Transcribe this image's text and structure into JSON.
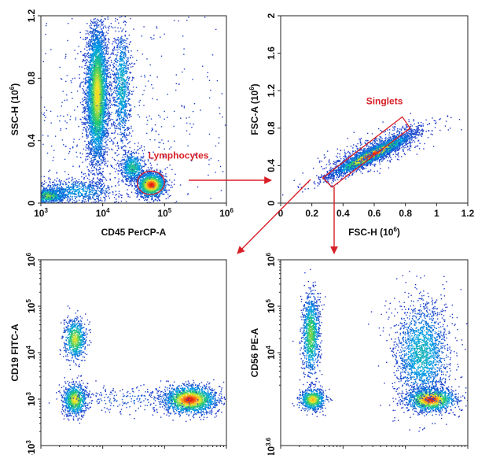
{
  "chart_data": [
    {
      "type": "scatter",
      "plot_style": "flow-cytometry-density-dot-plot",
      "xlabel": "CD45 PerCP-A",
      "ylabel": "SSC-H (10^6)",
      "x_scale": "log",
      "y_scale": "linear",
      "xlim": [
        1000,
        1000000
      ],
      "ylim": [
        0,
        1.2
      ],
      "x_ticks": [
        {
          "value": 1000,
          "base": "10",
          "exp": "3"
        },
        {
          "value": 10000,
          "base": "10",
          "exp": "4"
        },
        {
          "value": 100000,
          "base": "10",
          "exp": "5"
        },
        {
          "value": 1000000,
          "base": "10",
          "exp": "6"
        }
      ],
      "y_ticks": [
        {
          "value": 0,
          "label": "0"
        },
        {
          "value": 0.4,
          "label": "0.4"
        },
        {
          "value": 0.8,
          "label": "0.8"
        },
        {
          "value": 1.2,
          "label": "1.2"
        }
      ],
      "populations": [
        {
          "x": 8000,
          "y": 0.7,
          "x_spread_decades": 0.09,
          "y_spread": 0.22,
          "count": 4500,
          "peak": 0.75
        },
        {
          "x": 20000,
          "y": 0.75,
          "x_spread_decades": 0.07,
          "y_spread": 0.2,
          "count": 900,
          "peak": 0.35
        },
        {
          "x": 1300,
          "y": 0.05,
          "x_spread_decades": 0.15,
          "y_spread": 0.025,
          "count": 800,
          "peak": 0.6
        },
        {
          "x": 3500,
          "y": 0.08,
          "x_spread_decades": 0.35,
          "y_spread": 0.04,
          "count": 700,
          "peak": 0.25
        },
        {
          "x": 30000,
          "y": 0.23,
          "x_spread_decades": 0.1,
          "y_spread": 0.05,
          "count": 600,
          "peak": 0.45
        },
        {
          "x": 60000,
          "y": 0.12,
          "x_spread_decades": 0.12,
          "y_spread": 0.04,
          "count": 1500,
          "peak": 1.0
        },
        {
          "x": 12000,
          "y": 0.5,
          "x_spread_decades": 1.1,
          "y_spread": 0.4,
          "count": 700,
          "peak": 0.05
        }
      ],
      "gate": {
        "name": "Lymphocytes",
        "shape": "ellipse",
        "center": [
          60000,
          0.13
        ],
        "rx_decades": 0.22,
        "ry": 0.075,
        "rotation_deg": -5
      }
    },
    {
      "type": "scatter",
      "plot_style": "flow-cytometry-density-dot-plot",
      "xlabel": "FSC-H (10^6)",
      "ylabel": "FSC-A (10^6)",
      "x_scale": "linear",
      "y_scale": "linear",
      "xlim": [
        0,
        1.2
      ],
      "ylim": [
        0,
        2
      ],
      "x_ticks": [
        {
          "value": 0,
          "label": "0"
        },
        {
          "value": 0.2,
          "label": "0.2"
        },
        {
          "value": 0.4,
          "label": "0.4"
        },
        {
          "value": 0.6,
          "label": "0.6"
        },
        {
          "value": 0.8,
          "label": "0.8"
        },
        {
          "value": 1,
          "label": "1"
        },
        {
          "value": 1.2,
          "label": "1.2"
        }
      ],
      "y_ticks": [
        {
          "value": 0,
          "label": "0"
        },
        {
          "value": 0.4,
          "label": "0.4"
        },
        {
          "value": 0.8,
          "label": "0.8"
        },
        {
          "value": 1.2,
          "label": "1.2"
        },
        {
          "value": 1.6,
          "label": "1.6"
        },
        {
          "value": 2,
          "label": "2"
        }
      ],
      "populations": [
        {
          "x": 0.58,
          "y": 0.52,
          "diagonal": {
            "slope": 0.86,
            "t_spread": 0.16,
            "n_spread": 0.03
          },
          "count": 3500,
          "peak": 1.0
        },
        {
          "x": 0.62,
          "y": 0.58,
          "diagonal": {
            "slope": 0.86,
            "t_spread": 0.22,
            "n_spread": 0.07
          },
          "count": 800,
          "peak": 0.15
        }
      ],
      "gate": {
        "name": "Singlets",
        "shape": "polygon",
        "points": [
          [
            0.27,
            0.27
          ],
          [
            0.78,
            0.92
          ],
          [
            0.83,
            0.8
          ],
          [
            0.33,
            0.17
          ]
        ]
      }
    },
    {
      "type": "scatter",
      "plot_style": "flow-cytometry-density-dot-plot",
      "xlabel": "",
      "ylabel": "CD19 FITC-A",
      "x_scale": "log",
      "y_scale": "log",
      "xlim": [
        100,
        100000
      ],
      "ylim": [
        100,
        1000000
      ],
      "x_ticks": [],
      "y_ticks": [
        {
          "value": 1000,
          "base": "10",
          "exp": "3"
        },
        {
          "value": 10000,
          "base": "10",
          "exp": "4"
        },
        {
          "value": 100000,
          "base": "10",
          "exp": "5"
        },
        {
          "value": 1000000,
          "base": "10",
          "exp": "6"
        }
      ],
      "bottom_edge_label": {
        "base": "-10",
        "exp": "3"
      },
      "populations": [
        {
          "x": 350,
          "y": 20000,
          "x_spread_decades": 0.09,
          "y_spread_decades": 0.22,
          "count": 700,
          "peak": 0.7
        },
        {
          "x": 350,
          "y": 1000,
          "x_spread_decades": 0.1,
          "y_spread_decades": 0.17,
          "count": 900,
          "peak": 0.75
        },
        {
          "x": 25000,
          "y": 1000,
          "x_spread_decades": 0.22,
          "y_spread_decades": 0.15,
          "count": 1900,
          "peak": 1.0
        },
        {
          "x": 3500,
          "y": 1000,
          "x_spread_decades": 0.6,
          "y_spread_decades": 0.15,
          "count": 250,
          "peak": 0.1
        }
      ]
    },
    {
      "type": "scatter",
      "plot_style": "flow-cytometry-density-dot-plot",
      "xlabel": "",
      "ylabel": "CD56 PE-A",
      "x_scale": "log",
      "y_scale": "log",
      "xlim": [
        100,
        100000
      ],
      "ylim": [
        100,
        1000000
      ],
      "x_ticks": [],
      "y_ticks": [
        {
          "value": 10000,
          "base": "10",
          "exp": "4"
        },
        {
          "value": 100000,
          "base": "10",
          "exp": "5"
        },
        {
          "value": 1000000,
          "base": "10",
          "exp": "6"
        }
      ],
      "bottom_edge_label": {
        "base": "-10",
        "exp": "3.6"
      },
      "populations": [
        {
          "x": 300,
          "y": 25000,
          "x_spread_decades": 0.07,
          "y_spread_decades": 0.45,
          "count": 1100,
          "peak": 0.6
        },
        {
          "x": 320,
          "y": 1000,
          "x_spread_decades": 0.1,
          "y_spread_decades": 0.12,
          "count": 700,
          "peak": 0.8
        },
        {
          "x": 25000,
          "y": 1000,
          "x_spread_decades": 0.2,
          "y_spread_decades": 0.13,
          "count": 1400,
          "peak": 1.0
        },
        {
          "x": 18000,
          "y": 10000,
          "x_spread_decades": 0.22,
          "y_spread_decades": 0.55,
          "count": 1900,
          "peak": 0.35
        }
      ]
    }
  ]
}
